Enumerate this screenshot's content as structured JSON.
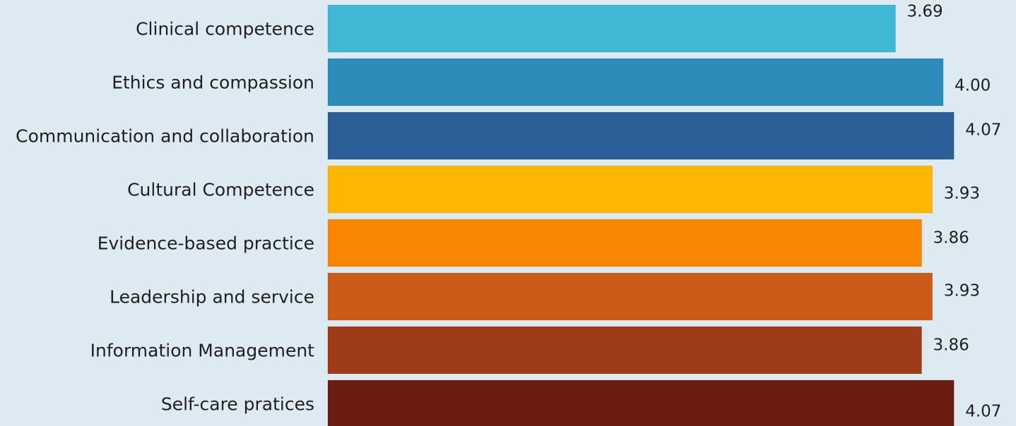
{
  "chart_data": {
    "type": "bar",
    "orientation": "horizontal",
    "categories": [
      "Clinical competence",
      "Ethics and compassion",
      "Communication and collaboration",
      "Cultural Competence",
      "Evidence-based practice",
      "Leadership and service",
      "Information Management",
      "Self-care pratices"
    ],
    "values": [
      3.69,
      4.0,
      4.07,
      3.93,
      3.86,
      3.93,
      3.86,
      4.07
    ],
    "value_labels": [
      "3.69",
      "4.00",
      "4.07",
      "3.93",
      "3.86",
      "3.93",
      "3.86",
      "4.07"
    ],
    "colors": [
      "#41b7d6",
      "#2e8cbb",
      "#2c5f98",
      "#ffb600",
      "#f98600",
      "#cc5b18",
      "#9e3b18",
      "#6b1d12"
    ],
    "background": "#deeaf1",
    "grid": false,
    "axes_visible": false,
    "legend": "none"
  }
}
